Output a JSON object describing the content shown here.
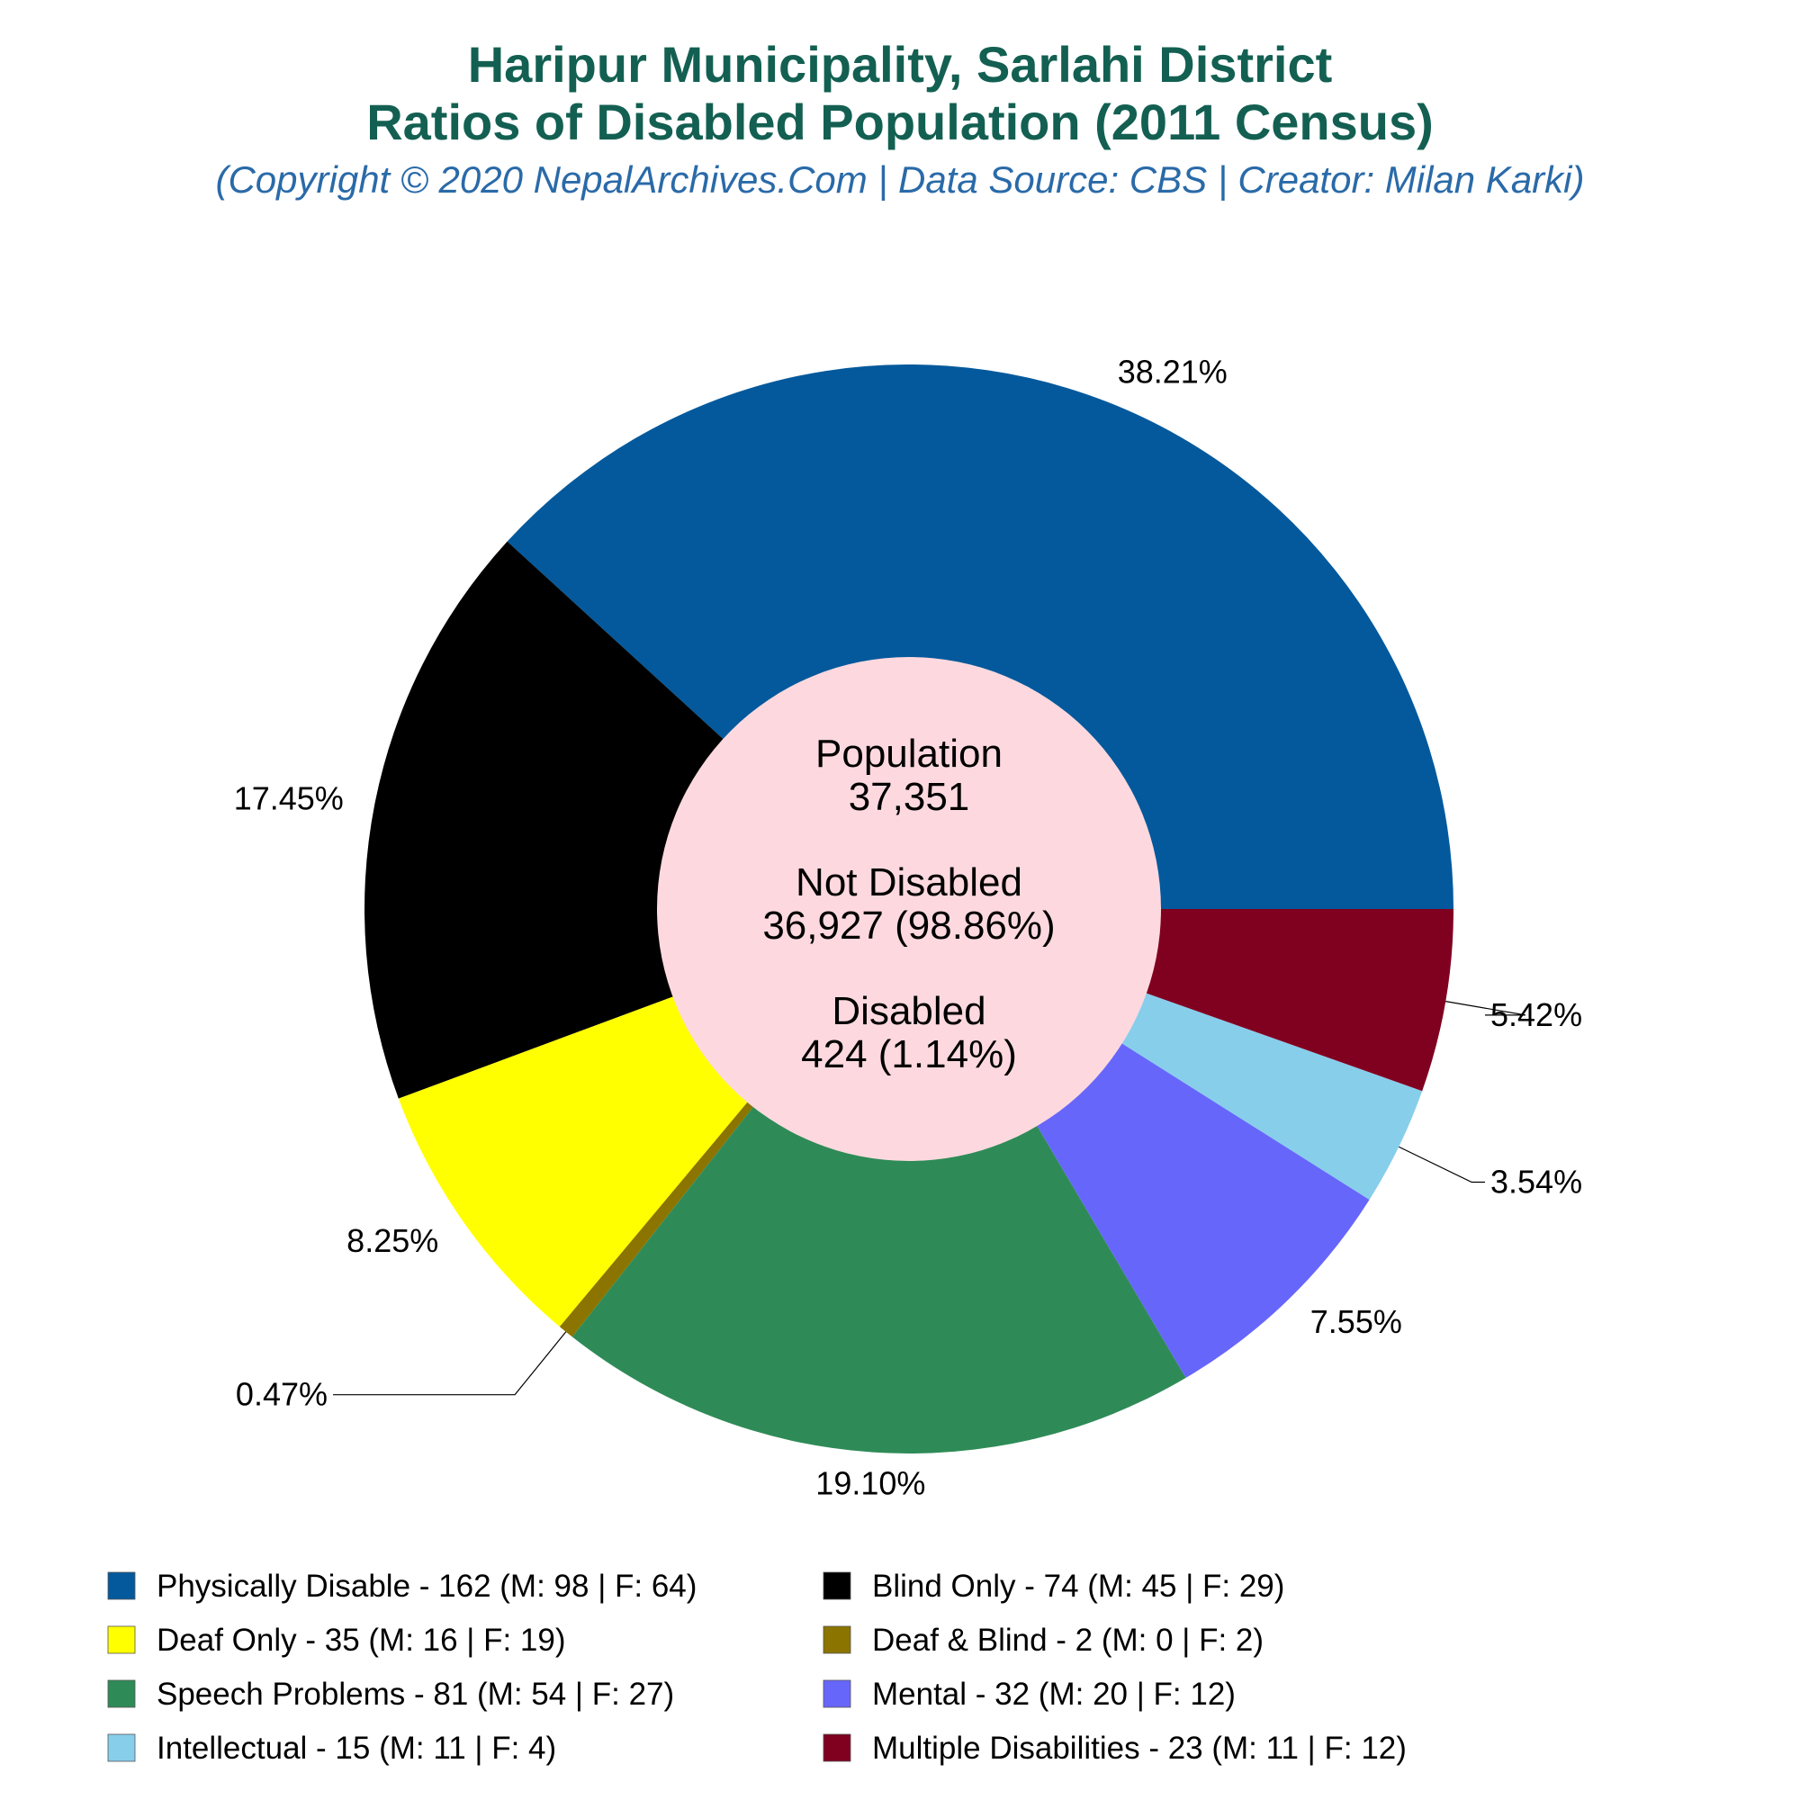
{
  "chart_data": {
    "type": "pie",
    "title": "Haripur Municipality, Sarlahi District",
    "subtitle": "Ratios of Disabled Population (2011 Census)",
    "credit": "(Copyright © 2020 NepalArchives.Com | Data Source: CBS | Creator: Milan Karki)",
    "center": {
      "population_label": "Population",
      "population_value": "37,351",
      "not_disabled_label": "Not Disabled",
      "not_disabled_value": "36,927 (98.86%)",
      "disabled_label": "Disabled",
      "disabled_value": "424 (1.14%)"
    },
    "slices": [
      {
        "name": "Physically Disable",
        "value": 162,
        "male": 98,
        "female": 64,
        "percent_label": "38.21%",
        "color": "#03599c",
        "legend": "Physically Disable - 162 (M: 98 | F: 64)"
      },
      {
        "name": "Blind Only",
        "value": 74,
        "male": 45,
        "female": 29,
        "percent_label": "17.45%",
        "color": "#000000",
        "legend": "Blind Only - 74 (M: 45 | F: 29)"
      },
      {
        "name": "Deaf Only",
        "value": 35,
        "male": 16,
        "female": 19,
        "percent_label": "8.25%",
        "color": "#ffff00",
        "legend": "Deaf Only - 35 (M: 16 | F: 19)"
      },
      {
        "name": "Deaf & Blind",
        "value": 2,
        "male": 0,
        "female": 2,
        "percent_label": "0.47%",
        "color": "#8b7500",
        "legend": "Deaf & Blind - 2 (M: 0 | F: 2)"
      },
      {
        "name": "Speech Problems",
        "value": 81,
        "male": 54,
        "female": 27,
        "percent_label": "19.10%",
        "color": "#2e8b57",
        "legend": "Speech Problems - 81 (M: 54 | F: 27)"
      },
      {
        "name": "Mental",
        "value": 32,
        "male": 20,
        "female": 12,
        "percent_label": "7.55%",
        "color": "#6766fb",
        "legend": "Mental - 32 (M: 20 | F: 12)"
      },
      {
        "name": "Intellectual",
        "value": 15,
        "male": 11,
        "female": 4,
        "percent_label": "3.54%",
        "color": "#87ceeb",
        "legend": "Intellectual - 15 (M: 11 | F: 4)"
      },
      {
        "name": "Multiple Disabilities",
        "value": 23,
        "male": 11,
        "female": 12,
        "percent_label": "5.42%",
        "color": "#800020",
        "legend": "Multiple Disabilities - 23 (M: 11 | F: 12)"
      }
    ],
    "inner_circle_color": "#fdd9df",
    "legend_placement": "bottom"
  }
}
